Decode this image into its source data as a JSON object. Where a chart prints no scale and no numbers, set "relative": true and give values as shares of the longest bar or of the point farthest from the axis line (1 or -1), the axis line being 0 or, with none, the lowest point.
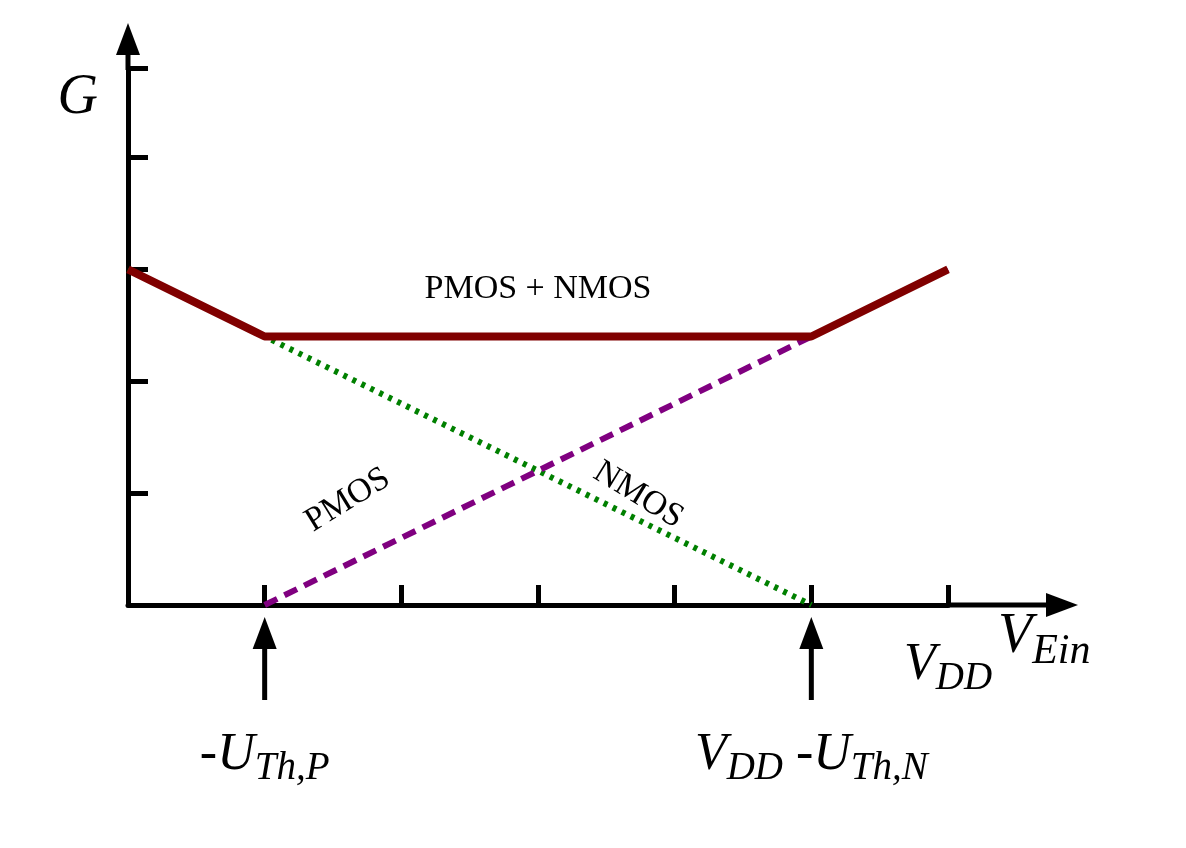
{
  "chart_data": {
    "type": "line",
    "relative": true,
    "xlabel": "V$_{Ein}$",
    "ylabel": "G",
    "categories": [
      null,
      "-U$_{Th,P}$",
      null,
      null,
      null,
      "V$_{DD}$ -U$_{Th,N}$",
      "V$_{DD}$"
    ],
    "series": [
      {
        "name": "PMOS + NMOS",
        "color": "#800000",
        "line_style": "solid",
        "values": [
          1,
          0.8,
          0.8,
          0.8,
          0.8,
          0.8,
          1
        ]
      },
      {
        "name": "PMOS",
        "color": "#800080",
        "line_style": "dashed",
        "values": [
          null,
          0,
          0.2,
          0.4,
          0.6,
          0.8,
          1
        ]
      },
      {
        "name": "NMOS",
        "color": "#008000",
        "line_style": "dotted",
        "values": [
          1,
          0.8,
          0.6,
          0.4,
          0.2,
          0,
          null
        ]
      }
    ],
    "grid": false,
    "legend": false,
    "marker": "none"
  }
}
